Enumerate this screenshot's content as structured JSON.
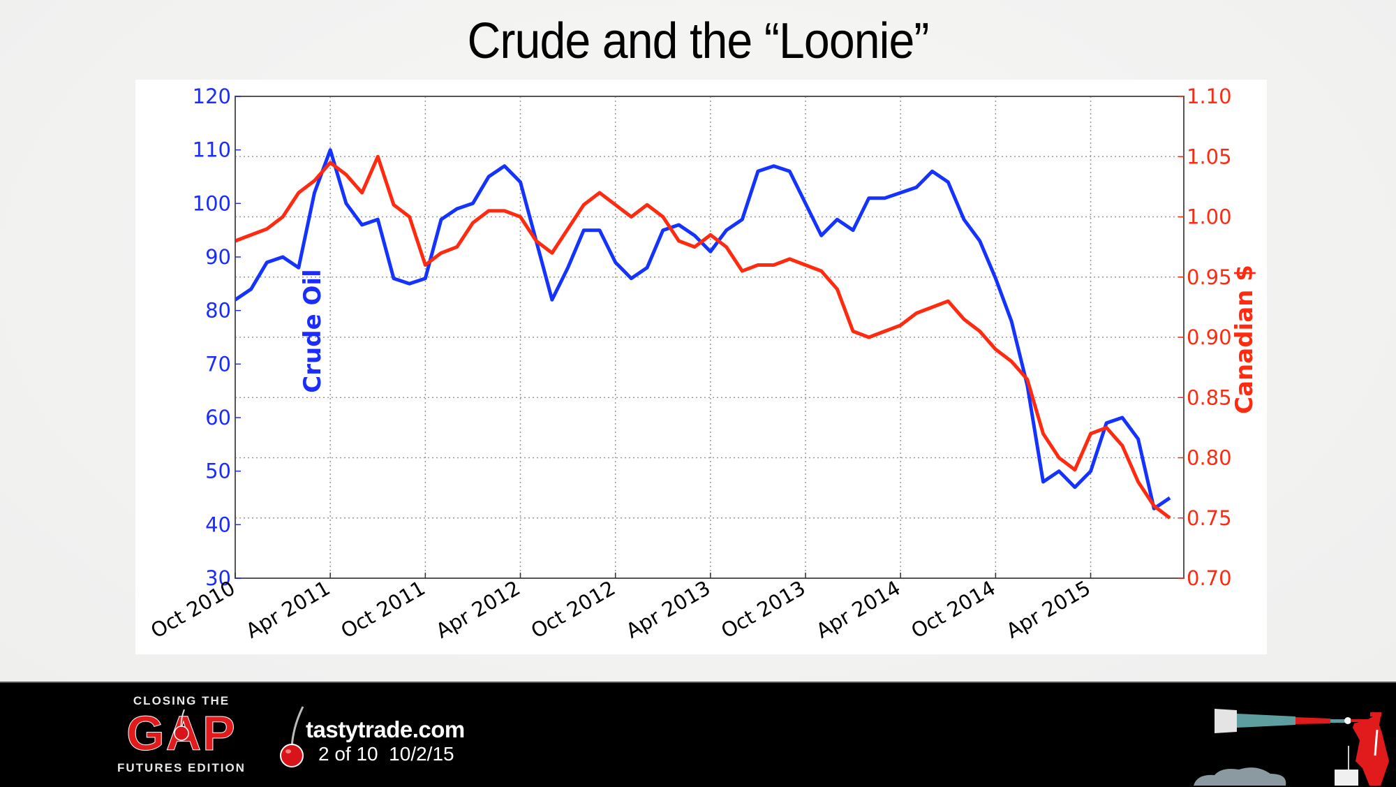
{
  "slide": {
    "title": "Crude and the “Loonie”"
  },
  "footer": {
    "gap_logo_top": "CLOSING THE",
    "gap_logo_word": "GAP",
    "gap_logo_bottom": "FUTURES EDITION",
    "site_name": "tastytrade.com",
    "page_info": "2 of 10  10/2/15"
  },
  "colors": {
    "crude": "#1433ff",
    "cad": "#ff2a10",
    "footer_bg": "#000000",
    "brand_red": "#e11b1b"
  },
  "chart_data": {
    "type": "line",
    "title": "Crude and the “Loonie”",
    "xlabel": "",
    "ylabel": "Crude Oil",
    "ylabel_right": "Canadian $",
    "ylim": [
      30,
      120
    ],
    "ylim_right": [
      0.7,
      1.1
    ],
    "yticks": [
      "120",
      "110",
      "100",
      "90",
      "80",
      "70",
      "60",
      "50",
      "40",
      "30"
    ],
    "yticks_right": [
      "1.10",
      "1.05",
      "1.00",
      "0.95",
      "0.90",
      "0.85",
      "0.80",
      "0.75",
      "0.70"
    ],
    "xticks": [
      "Oct 2010",
      "Apr 2011",
      "Oct 2011",
      "Apr 2012",
      "Oct 2012",
      "Apr 2013",
      "Oct 2013",
      "Apr 2014",
      "Oct 2014",
      "Apr 2015"
    ],
    "grid": true,
    "legend": "none",
    "x": [
      "Oct 2010",
      "Nov 2010",
      "Dec 2010",
      "Jan 2011",
      "Feb 2011",
      "Mar 2011",
      "Apr 2011",
      "May 2011",
      "Jun 2011",
      "Jul 2011",
      "Aug 2011",
      "Sep 2011",
      "Oct 2011",
      "Nov 2011",
      "Dec 2011",
      "Jan 2012",
      "Feb 2012",
      "Mar 2012",
      "Apr 2012",
      "May 2012",
      "Jun 2012",
      "Jul 2012",
      "Aug 2012",
      "Sep 2012",
      "Oct 2012",
      "Nov 2012",
      "Dec 2012",
      "Jan 2013",
      "Feb 2013",
      "Mar 2013",
      "Apr 2013",
      "May 2013",
      "Jun 2013",
      "Jul 2013",
      "Aug 2013",
      "Sep 2013",
      "Oct 2013",
      "Nov 2013",
      "Dec 2013",
      "Jan 2014",
      "Feb 2014",
      "Mar 2014",
      "Apr 2014",
      "May 2014",
      "Jun 2014",
      "Jul 2014",
      "Aug 2014",
      "Sep 2014",
      "Oct 2014",
      "Nov 2014",
      "Dec 2014",
      "Jan 2015",
      "Feb 2015",
      "Mar 2015",
      "Apr 2015",
      "May 2015",
      "Jun 2015",
      "Jul 2015",
      "Aug 2015",
      "Sep 2015"
    ],
    "series": [
      {
        "name": "Crude Oil",
        "axis": "left",
        "color": "#1433ff",
        "values": [
          82,
          84,
          89,
          90,
          88,
          102,
          110,
          100,
          96,
          97,
          86,
          85,
          86,
          97,
          99,
          100,
          105,
          107,
          104,
          93,
          82,
          88,
          95,
          95,
          89,
          86,
          88,
          95,
          96,
          94,
          91,
          95,
          97,
          106,
          107,
          106,
          100,
          94,
          97,
          95,
          101,
          101,
          102,
          103,
          106,
          104,
          97,
          93,
          86,
          78,
          66,
          48,
          50,
          47,
          50,
          59,
          60,
          56,
          43,
          45
        ]
      },
      {
        "name": "Canadian $",
        "axis": "right",
        "color": "#ff2a10",
        "values": [
          0.98,
          0.985,
          0.99,
          1.0,
          1.02,
          1.03,
          1.045,
          1.035,
          1.02,
          1.05,
          1.01,
          1.0,
          0.96,
          0.97,
          0.975,
          0.995,
          1.005,
          1.005,
          1.0,
          0.98,
          0.97,
          0.99,
          1.01,
          1.02,
          1.01,
          1.0,
          1.01,
          1.0,
          0.98,
          0.975,
          0.985,
          0.975,
          0.955,
          0.96,
          0.96,
          0.965,
          0.96,
          0.955,
          0.94,
          0.905,
          0.9,
          0.905,
          0.91,
          0.92,
          0.925,
          0.93,
          0.915,
          0.905,
          0.89,
          0.88,
          0.865,
          0.82,
          0.8,
          0.79,
          0.82,
          0.825,
          0.81,
          0.78,
          0.76,
          0.75
        ]
      }
    ]
  }
}
